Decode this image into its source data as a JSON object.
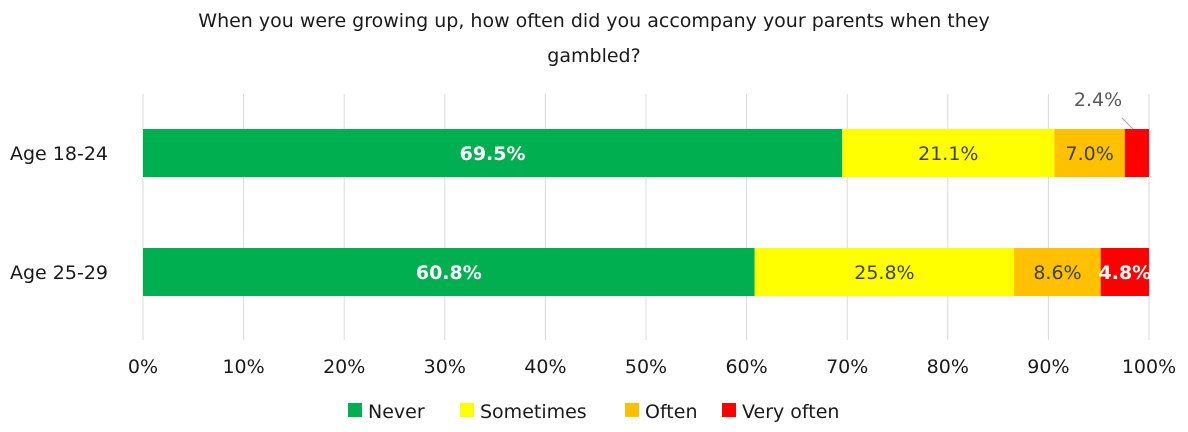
{
  "chart_data": {
    "type": "bar",
    "orientation": "horizontal",
    "stacked": true,
    "title": "When you were growing up, how often did you accompany your parents when they gambled?",
    "title_lines": [
      "When you were growing up, how often did you accompany your parents when they",
      "gambled?"
    ],
    "categories": [
      "Age 18-24",
      "Age 25-29"
    ],
    "series": [
      {
        "name": "Never",
        "color": "#00b050",
        "label_color": "#ffffff",
        "label_bold": true,
        "values": [
          69.5,
          60.8
        ],
        "labels": [
          "69.5%",
          "60.8%"
        ]
      },
      {
        "name": "Sometimes",
        "color": "#ffff00",
        "label_color": "#404040",
        "label_bold": false,
        "values": [
          21.1,
          25.8
        ],
        "labels": [
          "21.1%",
          "25.8%"
        ]
      },
      {
        "name": "Often",
        "color": "#ffc000",
        "label_color": "#404040",
        "label_bold": false,
        "values": [
          7.0,
          8.6
        ],
        "labels": [
          "7.0%",
          "8.6%"
        ]
      },
      {
        "name": "Very often",
        "color": "#ff0000",
        "label_color": "#ffffff",
        "label_bold": true,
        "values": [
          2.4,
          4.8
        ],
        "labels": [
          "2.4%",
          "4.8%"
        ]
      }
    ],
    "xlim": [
      0,
      100
    ],
    "x_ticks": [
      "0%",
      "10%",
      "20%",
      "30%",
      "40%",
      "50%",
      "60%",
      "70%",
      "80%",
      "90%",
      "100%"
    ],
    "grid": true,
    "legend": "bottom",
    "callout_label": {
      "series": "Very often",
      "category": "Age 18-24",
      "text": "2.4%",
      "color": "#595959"
    }
  }
}
